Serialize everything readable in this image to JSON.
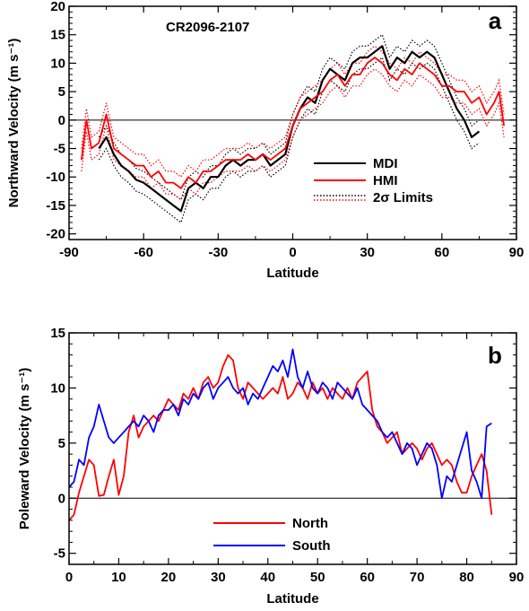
{
  "chart_data": [
    {
      "panel": "a",
      "type": "line",
      "annotation": "CR2096-2107",
      "xlabel": "Latitude",
      "ylabel": "Northward Velocity (m s⁻¹)",
      "xlim": [
        -90,
        90
      ],
      "ylim": [
        -21,
        20
      ],
      "xticks": [
        "-90",
        "-60",
        "-30",
        "0",
        "30",
        "60",
        "90"
      ],
      "yticks": [
        "-20",
        "-15",
        "-10",
        "-5",
        "0",
        "5",
        "10",
        "15",
        "20"
      ],
      "zero_line": true,
      "legend_position": "lower-right",
      "legend": [
        "MDI",
        "HMI",
        "2σ Limits"
      ],
      "series": [
        {
          "name": "MDI",
          "color": "#000000",
          "band_halfwidth": 2.0,
          "x": [
            -78,
            -75,
            -72,
            -69,
            -66,
            -63,
            -60,
            -57,
            -54,
            -51,
            -48,
            -45,
            -42,
            -39,
            -36,
            -33,
            -30,
            -27,
            -24,
            -21,
            -18,
            -15,
            -12,
            -9,
            -6,
            -3,
            0,
            3,
            6,
            9,
            12,
            15,
            18,
            21,
            24,
            27,
            30,
            33,
            36,
            39,
            42,
            45,
            48,
            51,
            54,
            57,
            60,
            63,
            66,
            69,
            72,
            75
          ],
          "y": [
            -5,
            -3,
            -6,
            -8,
            -9,
            -10.5,
            -11,
            -12,
            -13,
            -14,
            -15,
            -16,
            -12,
            -11,
            -12,
            -10,
            -10,
            -8,
            -7,
            -8,
            -7,
            -7,
            -6,
            -8,
            -7,
            -6,
            -1,
            2,
            4,
            3,
            7,
            9,
            8,
            7,
            10,
            11,
            11,
            12,
            13,
            9,
            11,
            10,
            12,
            11,
            12,
            11,
            8,
            5,
            2,
            0,
            -3,
            -2
          ]
        },
        {
          "name": "HMI",
          "color": "#ff0000",
          "band_halfwidth": 2.0,
          "x": [
            -85,
            -83,
            -81,
            -78,
            -75,
            -72,
            -69,
            -66,
            -63,
            -60,
            -57,
            -54,
            -51,
            -48,
            -45,
            -42,
            -39,
            -36,
            -33,
            -30,
            -27,
            -24,
            -21,
            -18,
            -15,
            -12,
            -9,
            -6,
            -3,
            0,
            3,
            6,
            9,
            12,
            15,
            18,
            21,
            24,
            27,
            30,
            33,
            36,
            39,
            42,
            45,
            48,
            51,
            54,
            57,
            60,
            63,
            66,
            69,
            72,
            75,
            78,
            81,
            83,
            85
          ],
          "y": [
            -7,
            0,
            -5,
            -4,
            1,
            -5,
            -6,
            -7,
            -8,
            -8,
            -10,
            -9,
            -11,
            -11,
            -12,
            -10,
            -11,
            -9,
            -9,
            -8,
            -7,
            -7,
            -7,
            -6,
            -7,
            -6,
            -7,
            -6,
            -5,
            -1,
            2,
            3,
            4,
            5,
            7,
            8,
            6,
            8,
            8,
            10,
            11,
            10,
            8,
            7,
            9,
            8,
            10,
            9,
            8,
            6,
            6,
            5,
            5,
            3,
            4,
            1,
            3,
            5,
            -1
          ]
        }
      ]
    },
    {
      "panel": "b",
      "type": "line",
      "xlabel": "Latitude",
      "ylabel": "Poleward Velocity (m s⁻¹)",
      "xlim": [
        0,
        90
      ],
      "ylim": [
        -6,
        15
      ],
      "xticks": [
        "0",
        "10",
        "20",
        "30",
        "40",
        "50",
        "60",
        "70",
        "80",
        "90"
      ],
      "yticks": [
        "-5",
        "0",
        "5",
        "10",
        "15"
      ],
      "zero_line": true,
      "legend_position": "lower-center",
      "legend": [
        "North",
        "South"
      ],
      "series": [
        {
          "name": "North",
          "color": "#ff0000",
          "x": [
            0,
            1,
            2,
            3,
            4,
            5,
            6,
            7,
            8,
            9,
            10,
            11,
            12,
            13,
            14,
            15,
            16,
            17,
            18,
            19,
            20,
            21,
            22,
            23,
            24,
            25,
            26,
            27,
            28,
            29,
            30,
            31,
            32,
            33,
            34,
            35,
            36,
            37,
            38,
            39,
            40,
            41,
            42,
            43,
            44,
            45,
            46,
            47,
            48,
            49,
            50,
            51,
            52,
            53,
            54,
            55,
            56,
            57,
            58,
            59,
            60,
            61,
            62,
            63,
            64,
            65,
            66,
            67,
            68,
            69,
            70,
            71,
            72,
            73,
            74,
            75,
            76,
            77,
            78,
            79,
            80,
            81,
            82,
            83,
            84,
            85
          ],
          "y": [
            -2,
            -1.5,
            0.5,
            2,
            3.5,
            3,
            0.2,
            0.3,
            2,
            3.5,
            0.3,
            2,
            6,
            7.5,
            5.5,
            6.5,
            7,
            7.5,
            7,
            8,
            9,
            8.5,
            8,
            9.5,
            9,
            10,
            9,
            10.5,
            11,
            10,
            10.5,
            12,
            13,
            12.5,
            10,
            9,
            10.5,
            10,
            9.5,
            9,
            9.5,
            10,
            9.5,
            11,
            9,
            9.5,
            10.5,
            10,
            9,
            10.5,
            9.5,
            10,
            9,
            10,
            9.5,
            9,
            10,
            9,
            10.5,
            11,
            11.5,
            8,
            6.5,
            6,
            5,
            5.5,
            6,
            4,
            4.5,
            5,
            4.5,
            3.5,
            4.5,
            5,
            4,
            3,
            3.5,
            3,
            1.5,
            0.5,
            0.5,
            2,
            3,
            4,
            2.5,
            -1.5
          ]
        },
        {
          "name": "South",
          "color": "#0000ff",
          "x": [
            0,
            1,
            2,
            3,
            4,
            5,
            6,
            7,
            8,
            9,
            10,
            11,
            12,
            13,
            14,
            15,
            16,
            17,
            18,
            19,
            20,
            21,
            22,
            23,
            24,
            25,
            26,
            27,
            28,
            29,
            30,
            31,
            32,
            33,
            34,
            35,
            36,
            37,
            38,
            39,
            40,
            41,
            42,
            43,
            44,
            45,
            46,
            47,
            48,
            49,
            50,
            51,
            52,
            53,
            54,
            55,
            56,
            57,
            58,
            59,
            60,
            61,
            62,
            63,
            64,
            65,
            66,
            67,
            68,
            69,
            70,
            71,
            72,
            73,
            74,
            75,
            76,
            77,
            78,
            79,
            80,
            81,
            82,
            83,
            84,
            85
          ],
          "y": [
            1,
            1.5,
            3.5,
            3,
            5.5,
            6.5,
            8.5,
            7,
            5.5,
            5,
            5.5,
            6,
            6.5,
            7,
            6.5,
            7.5,
            7,
            6,
            7.5,
            8,
            8,
            8.5,
            7.5,
            9,
            8.5,
            9.5,
            9,
            10,
            10.5,
            9,
            10,
            10.5,
            11,
            10,
            9.5,
            10,
            8.5,
            9.5,
            9,
            10,
            11,
            12,
            11.5,
            12.5,
            11,
            13.5,
            11,
            10,
            11.5,
            10,
            9.5,
            10.5,
            10,
            9,
            10.5,
            10,
            9.5,
            9,
            10,
            8.5,
            8,
            7.5,
            7,
            6,
            5.5,
            6,
            5,
            4,
            5,
            4.5,
            3,
            4,
            5,
            4.5,
            3,
            0,
            2,
            1.5,
            3,
            4.5,
            6,
            2.5,
            1.5,
            0,
            6.5,
            6.8
          ]
        }
      ]
    }
  ]
}
